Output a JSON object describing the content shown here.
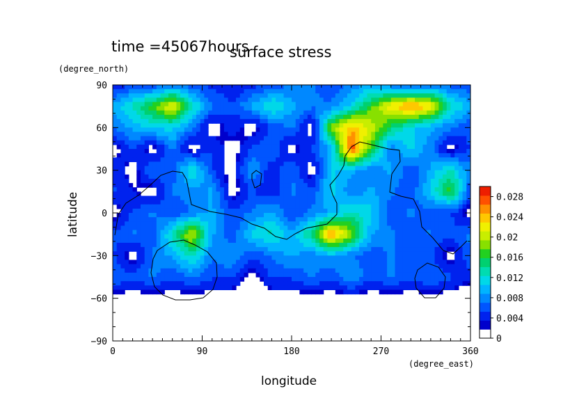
{
  "chart_data": {
    "type": "heatmap",
    "title": "surface stress",
    "time_label": "time =45067hours",
    "xlabel": "longitude",
    "ylabel": "latitude",
    "x_unit": "(degree_east)",
    "y_unit": "(degree_north)",
    "xlim": [
      0,
      360
    ],
    "ylim": [
      -90,
      90
    ],
    "x_ticks": [
      "0",
      "90",
      "180",
      "270",
      "360"
    ],
    "y_ticks": [
      "90",
      "60",
      "30",
      "0",
      "−30",
      "−60",
      "−90"
    ],
    "colorbar": {
      "min": 0,
      "max": 0.03,
      "tick_labels": [
        "0.028",
        "0.024",
        "0.02",
        "0.016",
        "0.012",
        "0.008",
        "0.004",
        "0"
      ],
      "tick_values": [
        0.028,
        0.024,
        0.02,
        0.016,
        0.012,
        0.008,
        0.004,
        0
      ],
      "colors": [
        "#ffffff",
        "#0000cc",
        "#0022ee",
        "#0055ff",
        "#0088ff",
        "#00b4ff",
        "#00d8e8",
        "#00dcb0",
        "#00d070",
        "#22d020",
        "#88e000",
        "#c8ee00",
        "#f0f000",
        "#ffc800",
        "#ff9000",
        "#ff5000",
        "#ee1e00"
      ]
    },
    "field": {
      "lon_step": 20,
      "lat_step": 15,
      "grid": [
        [
          0.002,
          0.004,
          0.004,
          0.006,
          0.004,
          0.003,
          0.002,
          0.003,
          0.004,
          0.006,
          0.006,
          0.004,
          0.006,
          0.008,
          0.006,
          0.004,
          0.006,
          0.005,
          0.004
        ],
        [
          0.008,
          0.012,
          0.016,
          0.022,
          0.012,
          0.006,
          0.004,
          0.008,
          0.012,
          0.008,
          0.006,
          0.006,
          0.01,
          0.016,
          0.022,
          0.026,
          0.022,
          0.012,
          0.008
        ],
        [
          0.006,
          0.008,
          0.01,
          0.01,
          0.006,
          0.0,
          0.003,
          0.0,
          0.004,
          0.006,
          0.0,
          0.018,
          0.024,
          0.02,
          0.014,
          0.01,
          0.008,
          0.006,
          0.004
        ],
        [
          0.0,
          0.004,
          0.0,
          0.006,
          0.0,
          0.004,
          0.0,
          0.004,
          0.006,
          0.0,
          0.004,
          0.008,
          0.028,
          0.016,
          0.006,
          0.01,
          0.006,
          0.0,
          0.004
        ],
        [
          0.004,
          0.0,
          0.006,
          0.004,
          0.012,
          0.004,
          0.0,
          0.008,
          0.002,
          0.006,
          0.0,
          0.01,
          0.008,
          0.006,
          0.008,
          0.004,
          0.008,
          0.012,
          0.006
        ],
        [
          0.004,
          0.002,
          0.0,
          0.006,
          0.006,
          0.008,
          0.0,
          0.004,
          0.002,
          0.006,
          0.004,
          0.01,
          0.006,
          0.008,
          0.006,
          0.004,
          0.01,
          0.016,
          0.004
        ],
        [
          0.0,
          0.004,
          0.006,
          0.004,
          0.006,
          0.008,
          0.004,
          0.006,
          0.008,
          0.004,
          0.006,
          0.008,
          0.012,
          0.01,
          0.004,
          0.006,
          0.004,
          0.004,
          0.0
        ],
        [
          0.004,
          0.006,
          0.004,
          0.012,
          0.02,
          0.008,
          0.004,
          0.01,
          0.012,
          0.008,
          0.014,
          0.026,
          0.018,
          0.008,
          0.006,
          0.004,
          0.006,
          0.004,
          0.006
        ],
        [
          0.004,
          0.0,
          0.006,
          0.008,
          0.012,
          0.006,
          0.008,
          0.004,
          0.006,
          0.008,
          0.006,
          0.008,
          0.006,
          0.004,
          0.006,
          0.004,
          0.004,
          0.0,
          0.006
        ],
        [
          0.006,
          0.004,
          0.006,
          0.004,
          0.006,
          0.004,
          0.004,
          0.0,
          0.004,
          0.004,
          0.006,
          0.004,
          0.008,
          0.004,
          0.006,
          0.004,
          0.006,
          0.004,
          0.002
        ],
        [
          0.0,
          0.0,
          0.0,
          0.0,
          0.0,
          0.0,
          0.0,
          0.0,
          0.0,
          0.0,
          0.0,
          0.0,
          0.0,
          0.0,
          0.0,
          0.0,
          0.0,
          0.0,
          0.0
        ],
        [
          0.0,
          0.0,
          0.0,
          0.0,
          0.0,
          0.0,
          0.0,
          0.0,
          0.0,
          0.0,
          0.0,
          0.0,
          0.0,
          0.0,
          0.0,
          0.0,
          0.0,
          0.0,
          0.0
        ],
        [
          0.0,
          0.0,
          0.0,
          0.0,
          0.0,
          0.0,
          0.0,
          0.0,
          0.0,
          0.0,
          0.0,
          0.0,
          0.0,
          0.0,
          0.0,
          0.0,
          0.0,
          0.0,
          0.0
        ]
      ]
    }
  }
}
